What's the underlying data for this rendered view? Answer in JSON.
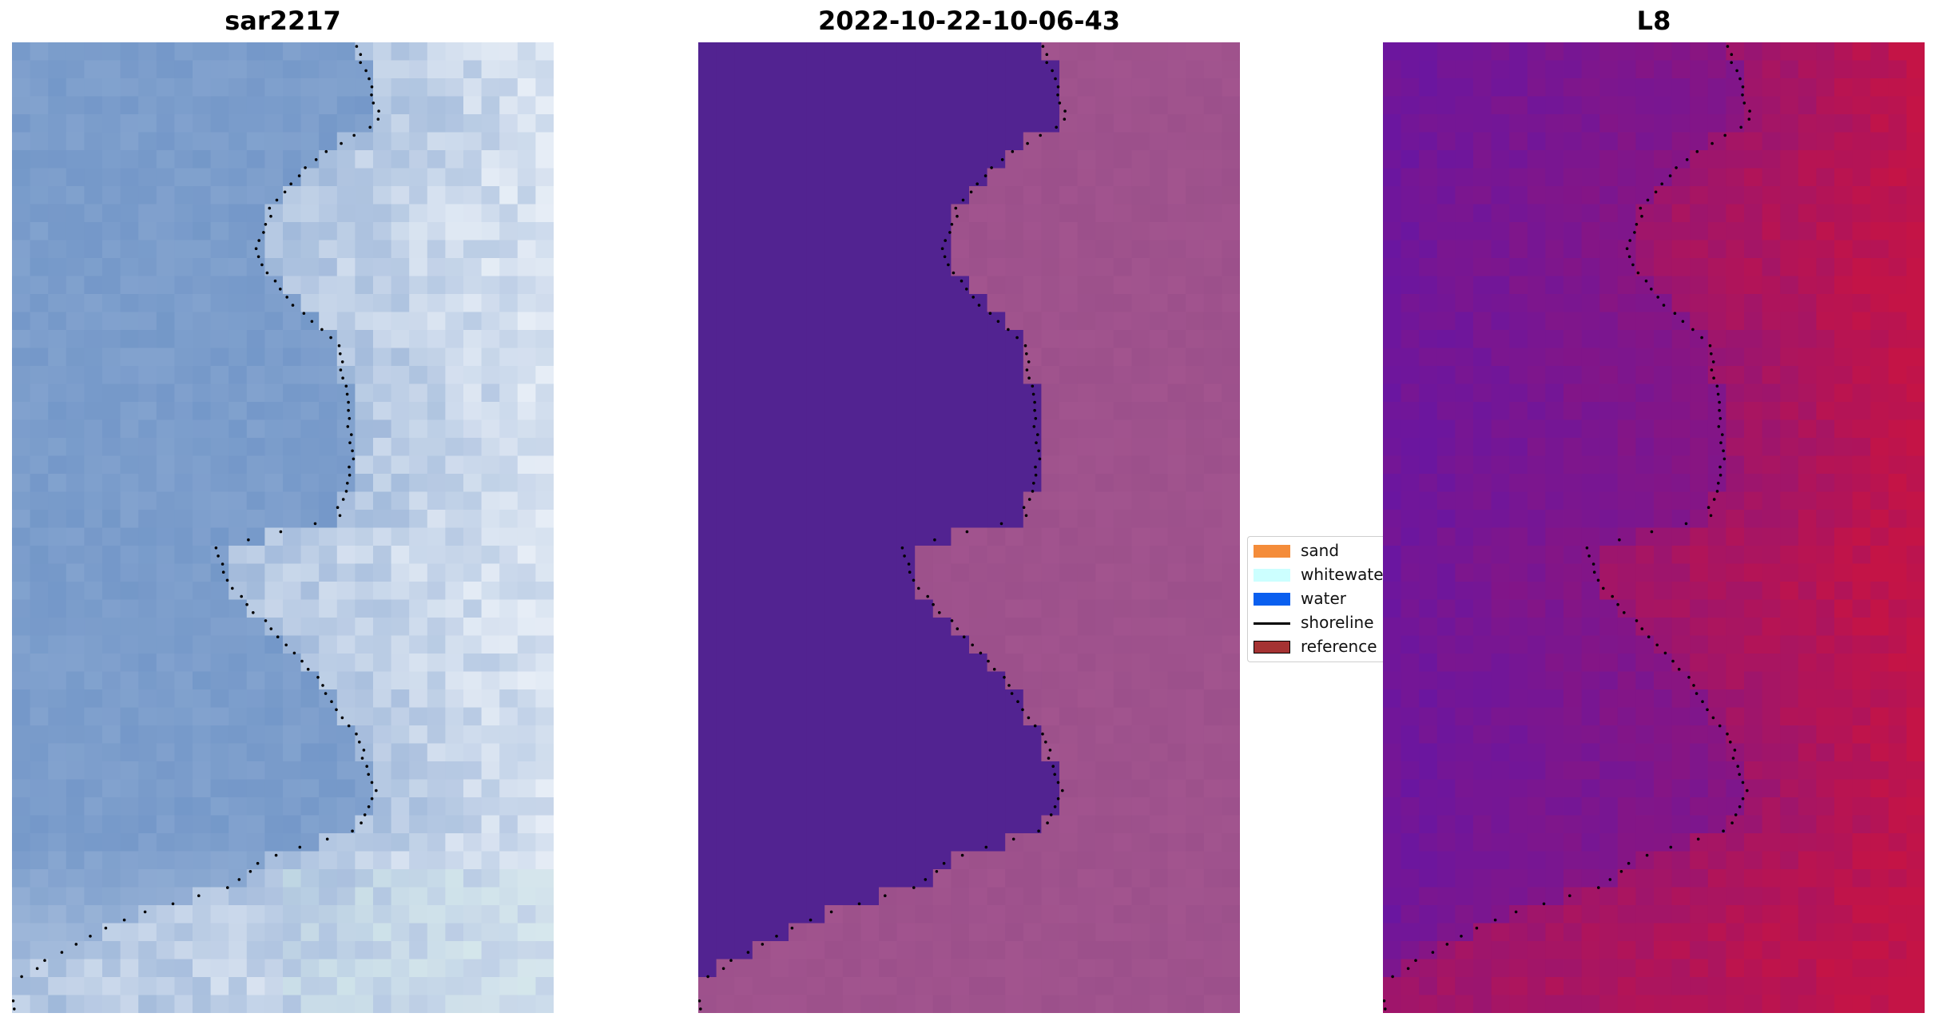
{
  "panels": [
    {
      "title": "sar2217",
      "kind": "rgb"
    },
    {
      "title": "2022-10-22-10-06-43",
      "kind": "classified"
    },
    {
      "title": "L8",
      "kind": "index"
    }
  ],
  "legend": {
    "items": [
      {
        "label": "sand",
        "color": "#f48c3a",
        "type": "patch"
      },
      {
        "label": "whitewater",
        "color": "#ccffff",
        "type": "patch"
      },
      {
        "label": "water",
        "color": "#0a5fef",
        "type": "patch"
      },
      {
        "label": "shoreline",
        "color": "#000000",
        "type": "line"
      },
      {
        "label": "reference",
        "color": "#a53333",
        "type": "patch"
      }
    ]
  },
  "colors": {
    "sea_blue": "#6e93c6",
    "foam_white": "#e6edf6",
    "classified_water": "#522391",
    "classified_land": "#a55690",
    "index_low": "#6a16a0",
    "index_high": "#c41446"
  }
}
